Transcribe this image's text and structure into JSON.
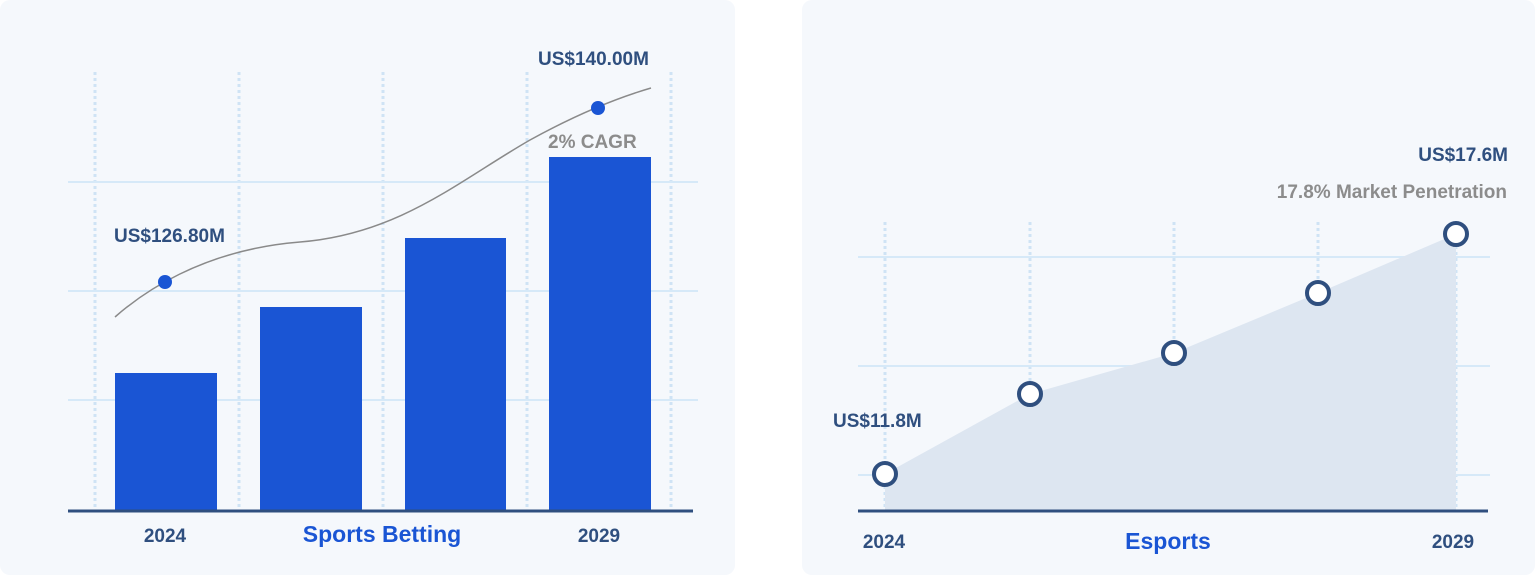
{
  "cards": [
    {
      "title": "Sports Betting",
      "start_year": "2024",
      "end_year": "2029",
      "start_label": "US$126.80M",
      "end_label": "US$140.00M",
      "note": "2% CAGR"
    },
    {
      "title": "Esports",
      "start_year": "2024",
      "end_year": "2029",
      "start_label": "US$11.8M",
      "end_label": "US$17.6M",
      "note": "17.8% Market Penetration"
    }
  ]
}
